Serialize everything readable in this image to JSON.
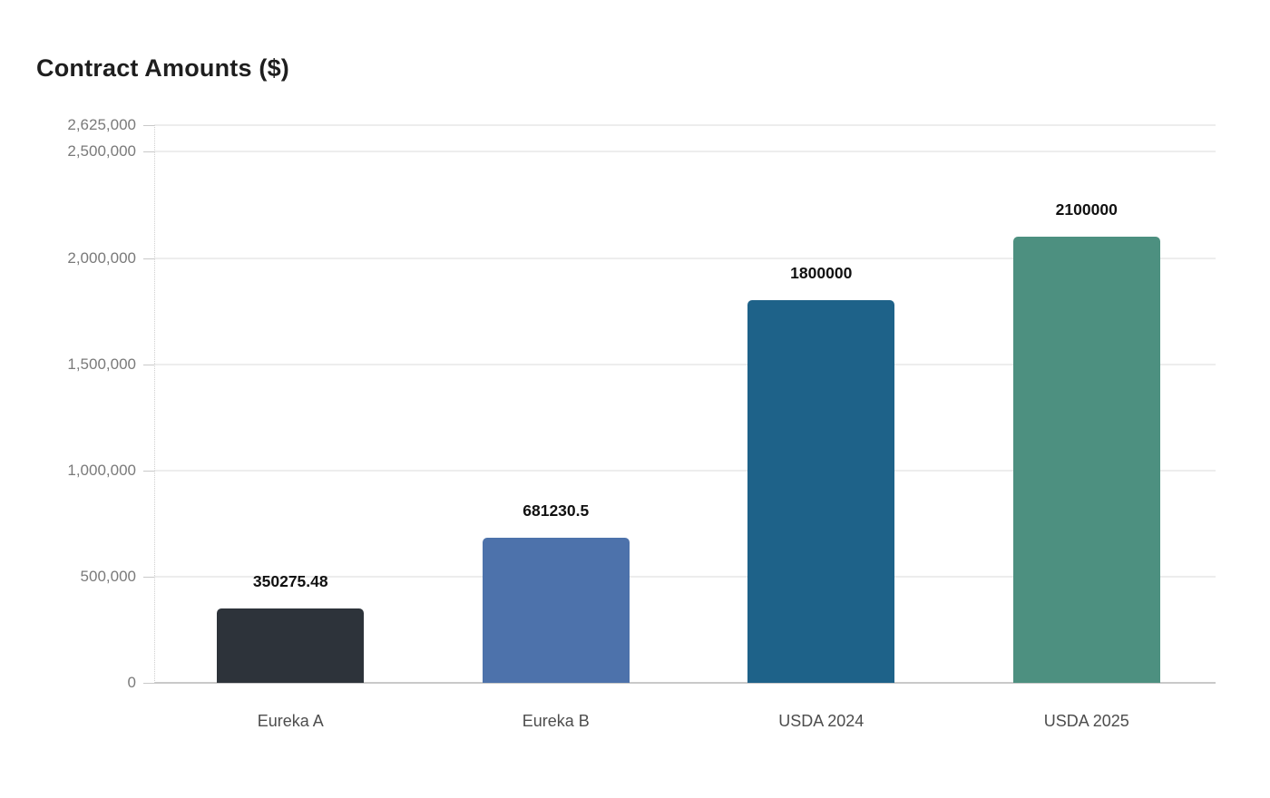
{
  "title": "Contract Amounts ($)",
  "chart_data": {
    "type": "bar",
    "title": "Contract Amounts ($)",
    "xlabel": "",
    "ylabel": "",
    "categories": [
      "Eureka A",
      "Eureka B",
      "USDA 2024",
      "USDA 2025"
    ],
    "values": [
      350275.48,
      681230.5,
      1800000,
      2100000
    ],
    "value_labels": [
      "350275.48",
      "681230.5",
      "1800000",
      "2100000"
    ],
    "bar_colors": [
      "#2d333a",
      "#4d72ab",
      "#1e6289",
      "#4d9080"
    ],
    "y_ticks": [
      0,
      500000,
      1000000,
      1500000,
      2000000,
      2500000,
      2625000
    ],
    "y_tick_labels": [
      "0",
      "500,000",
      "1,000,000",
      "1,500,000",
      "2,000,000",
      "2,500,000",
      "2,625,000"
    ],
    "ylim": [
      0,
      2625000
    ],
    "grid": true,
    "legend": "none",
    "value_label_color": "#111111",
    "tick_label_color": "#7a7a7a",
    "category_label_color": "#4d4d4d",
    "title_color": "#1e1e1e"
  }
}
